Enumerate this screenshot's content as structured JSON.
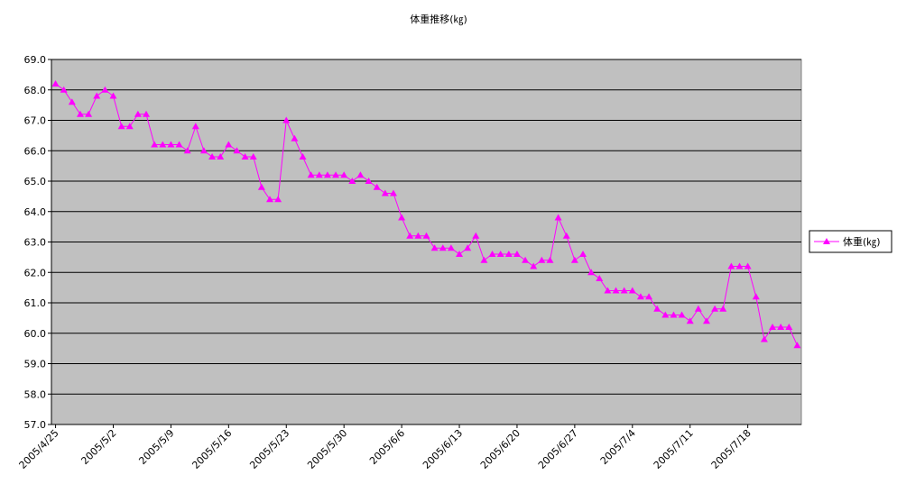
{
  "chart_data": {
    "type": "line",
    "title": "体重推移(㎏)",
    "categories": [
      "2005/4/25",
      null,
      null,
      null,
      null,
      null,
      null,
      "2005/5/2",
      null,
      null,
      null,
      null,
      null,
      null,
      "2005/5/9",
      null,
      null,
      null,
      null,
      null,
      null,
      "2005/5/16",
      null,
      null,
      null,
      null,
      null,
      null,
      "2005/5/23",
      null,
      null,
      null,
      null,
      null,
      null,
      "2005/5/30",
      null,
      null,
      null,
      null,
      null,
      null,
      "2005/6/6",
      null,
      null,
      null,
      null,
      null,
      null,
      "2005/6/13",
      null,
      null,
      null,
      null,
      null,
      null,
      "2005/6/20",
      null,
      null,
      null,
      null,
      null,
      null,
      "2005/6/27",
      null,
      null,
      null,
      null,
      null,
      null,
      "2005/7/4",
      null,
      null,
      null,
      null,
      null,
      null,
      "2005/7/11",
      null,
      null,
      null,
      null,
      null,
      null,
      "2005/7/18",
      null,
      null,
      null,
      null,
      null,
      null
    ],
    "series": [
      {
        "name": "体重(㎏)",
        "color": "#ff00ff",
        "values": [
          68.2,
          68.0,
          67.6,
          67.2,
          67.2,
          67.8,
          68.0,
          67.8,
          66.8,
          66.8,
          67.2,
          67.2,
          66.2,
          66.2,
          66.2,
          66.2,
          66.0,
          66.8,
          66.0,
          65.8,
          65.8,
          66.2,
          66.0,
          65.8,
          65.8,
          64.8,
          64.4,
          64.4,
          67.0,
          66.4,
          65.8,
          65.2,
          65.2,
          65.2,
          65.2,
          65.2,
          65.0,
          65.2,
          65.0,
          64.8,
          64.6,
          64.6,
          63.8,
          63.2,
          63.2,
          63.2,
          62.8,
          62.8,
          62.8,
          62.6,
          62.8,
          63.2,
          62.4,
          62.6,
          62.6,
          62.6,
          62.6,
          62.4,
          62.2,
          62.4,
          62.4,
          63.8,
          63.2,
          62.4,
          62.6,
          62.0,
          61.8,
          61.4,
          61.4,
          61.4,
          61.4,
          61.2,
          61.2,
          60.8,
          60.6,
          60.6,
          60.6,
          60.4,
          60.8,
          60.4,
          60.8,
          60.8,
          62.2,
          62.2,
          62.2,
          61.2,
          59.8,
          60.2,
          60.2,
          60.2,
          59.6
        ]
      }
    ],
    "ylim": [
      57,
      69
    ],
    "yticks": [
      {
        "value": 57,
        "label": "57.0"
      },
      {
        "value": 58,
        "label": "58.0"
      },
      {
        "value": 59,
        "label": "59.0"
      },
      {
        "value": 60,
        "label": "60.0"
      },
      {
        "value": 61,
        "label": "61.0"
      },
      {
        "value": 62,
        "label": "62.0"
      },
      {
        "value": 63,
        "label": "63.0"
      },
      {
        "value": 64,
        "label": "64.0"
      },
      {
        "value": 65,
        "label": "65.0"
      },
      {
        "value": 66,
        "label": "66.0"
      },
      {
        "value": 67,
        "label": "67.0"
      },
      {
        "value": 68,
        "label": "68.0"
      },
      {
        "value": 69,
        "label": "69.0"
      }
    ],
    "grid": true,
    "legend": "right",
    "background": "#c0c0c0"
  }
}
